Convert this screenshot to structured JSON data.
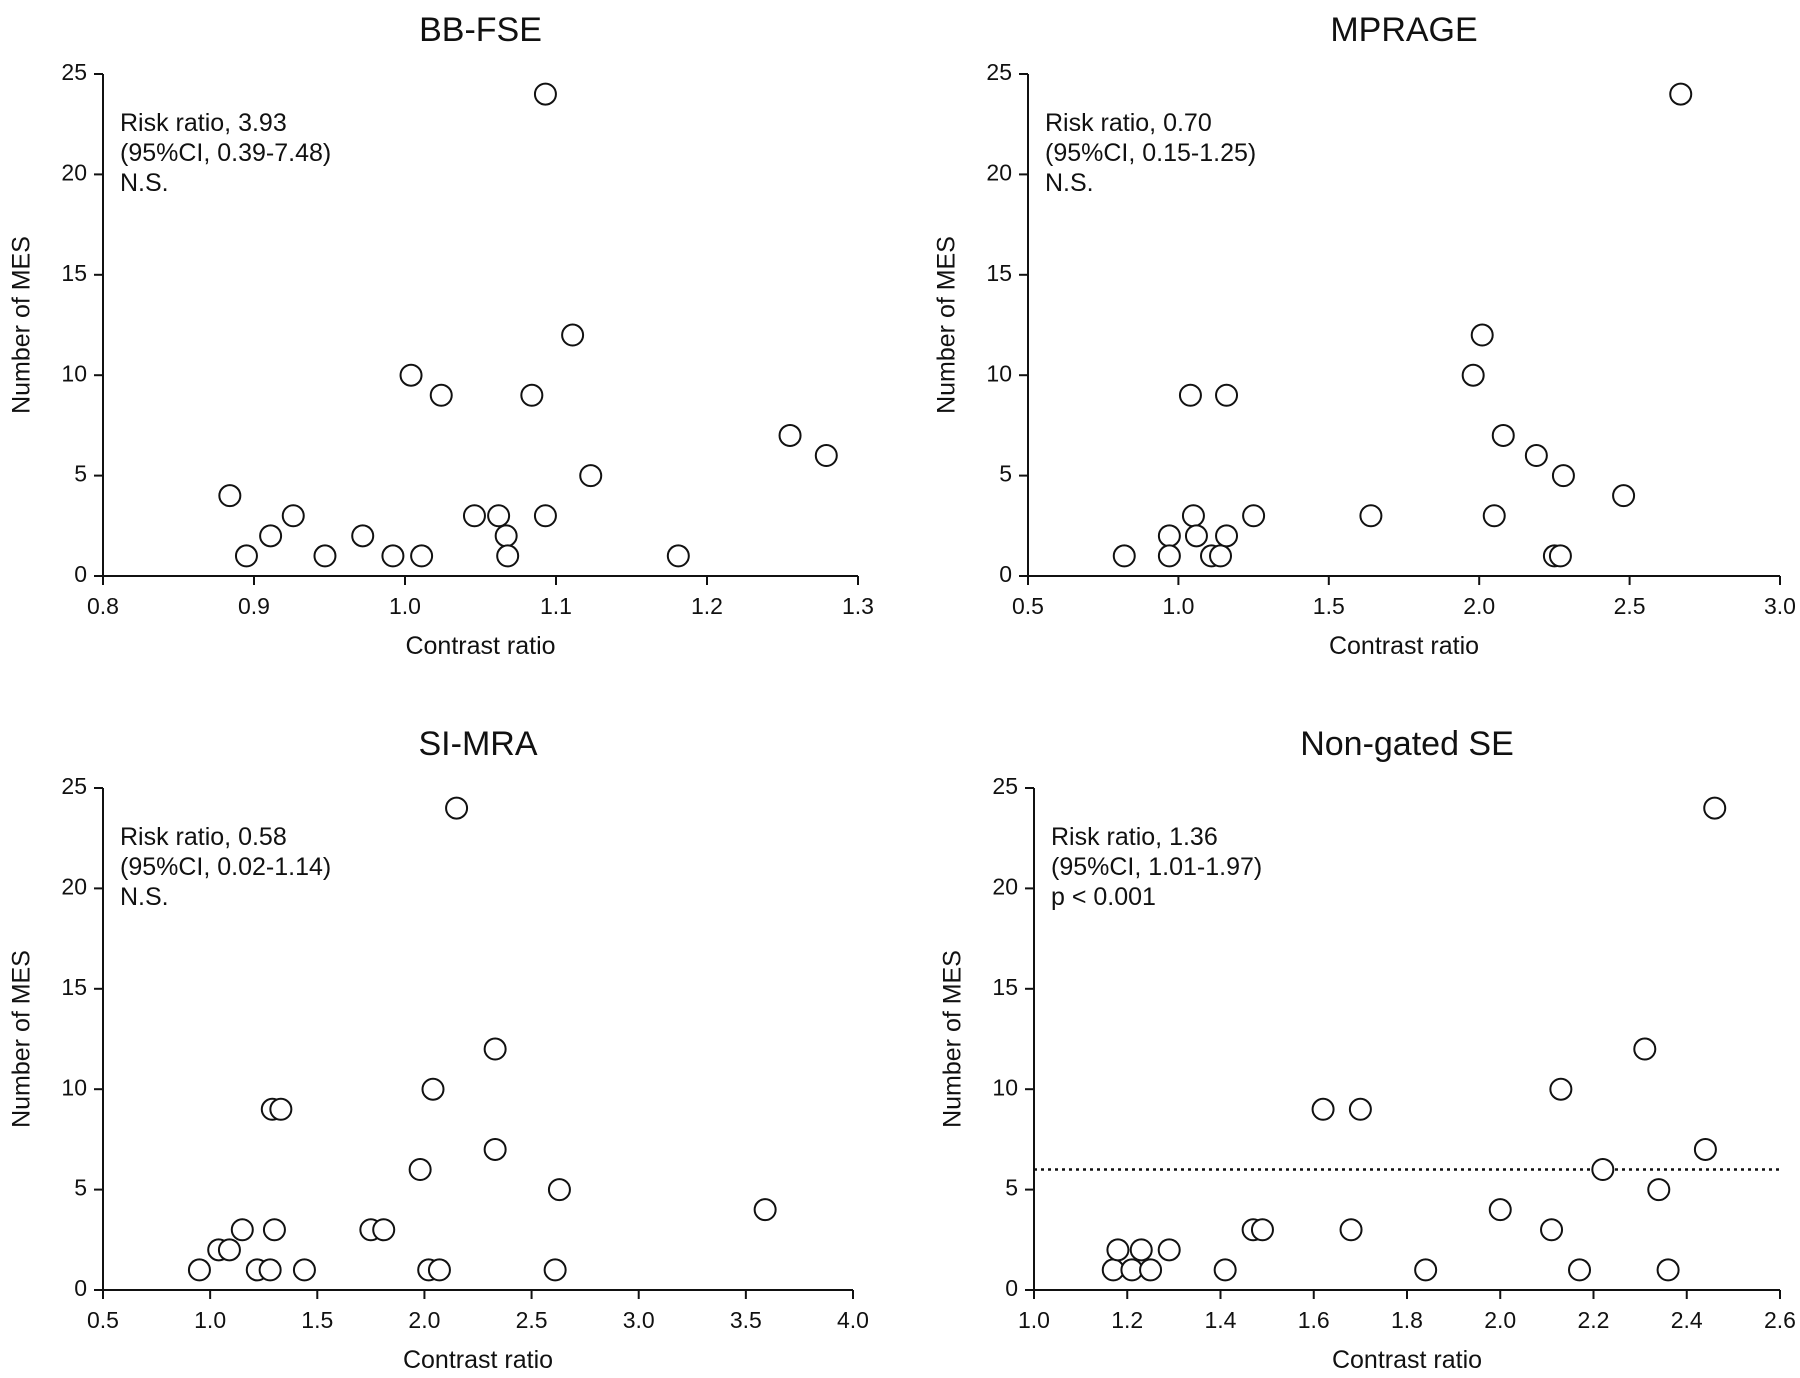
{
  "chart_data": [
    {
      "type": "scatter",
      "title": "BB-FSE",
      "xlabel": "Contrast ratio",
      "ylabel": "Number of MES",
      "xlim": [
        0.8,
        1.3
      ],
      "ylim": [
        0,
        25
      ],
      "xticks": [
        "0.8",
        "0.9",
        "1.0",
        "1.1",
        "1.2",
        "1.3"
      ],
      "yticks": [
        "0",
        "5",
        "10",
        "15",
        "20",
        "25"
      ],
      "annotations": [
        "Risk ratio, 3.93",
        "(95%CI, 0.39-7.48)",
        "N.S."
      ],
      "points": [
        {
          "x": 0.884,
          "y": 4
        },
        {
          "x": 0.895,
          "y": 1
        },
        {
          "x": 0.911,
          "y": 2
        },
        {
          "x": 0.926,
          "y": 3
        },
        {
          "x": 0.947,
          "y": 1
        },
        {
          "x": 0.972,
          "y": 2
        },
        {
          "x": 0.992,
          "y": 1
        },
        {
          "x": 1.004,
          "y": 10
        },
        {
          "x": 1.011,
          "y": 1
        },
        {
          "x": 1.024,
          "y": 9
        },
        {
          "x": 1.046,
          "y": 3
        },
        {
          "x": 1.062,
          "y": 3
        },
        {
          "x": 1.067,
          "y": 2
        },
        {
          "x": 1.068,
          "y": 1
        },
        {
          "x": 1.084,
          "y": 9
        },
        {
          "x": 1.093,
          "y": 3
        },
        {
          "x": 1.093,
          "y": 24
        },
        {
          "x": 1.111,
          "y": 12
        },
        {
          "x": 1.123,
          "y": 5
        },
        {
          "x": 1.181,
          "y": 1
        },
        {
          "x": 1.255,
          "y": 7
        },
        {
          "x": 1.279,
          "y": 6
        }
      ]
    },
    {
      "type": "scatter",
      "title": "MPRAGE",
      "xlabel": "Contrast ratio",
      "ylabel": "Number of MES",
      "xlim": [
        0.5,
        3.0
      ],
      "ylim": [
        0,
        25
      ],
      "xticks": [
        "0.5",
        "1.0",
        "1.5",
        "2.0",
        "2.5",
        "3.0"
      ],
      "yticks": [
        "0",
        "5",
        "10",
        "15",
        "20",
        "25"
      ],
      "annotations": [
        "Risk ratio, 0.70",
        "(95%CI, 0.15-1.25)",
        "N.S."
      ],
      "points": [
        {
          "x": 0.82,
          "y": 1
        },
        {
          "x": 0.97,
          "y": 2
        },
        {
          "x": 0.97,
          "y": 1
        },
        {
          "x": 1.04,
          "y": 9
        },
        {
          "x": 1.05,
          "y": 3
        },
        {
          "x": 1.06,
          "y": 2
        },
        {
          "x": 1.11,
          "y": 1
        },
        {
          "x": 1.14,
          "y": 1
        },
        {
          "x": 1.16,
          "y": 2
        },
        {
          "x": 1.16,
          "y": 9
        },
        {
          "x": 1.25,
          "y": 3
        },
        {
          "x": 1.64,
          "y": 3
        },
        {
          "x": 1.98,
          "y": 10
        },
        {
          "x": 2.01,
          "y": 12
        },
        {
          "x": 2.05,
          "y": 3
        },
        {
          "x": 2.08,
          "y": 7
        },
        {
          "x": 2.19,
          "y": 6
        },
        {
          "x": 2.25,
          "y": 1
        },
        {
          "x": 2.27,
          "y": 1
        },
        {
          "x": 2.28,
          "y": 5
        },
        {
          "x": 2.48,
          "y": 4
        },
        {
          "x": 2.67,
          "y": 24
        }
      ]
    },
    {
      "type": "scatter",
      "title": "SI-MRA",
      "xlabel": "Contrast ratio",
      "ylabel": "Number of MES",
      "xlim": [
        0.5,
        4.0
      ],
      "ylim": [
        0,
        25
      ],
      "xticks": [
        "0.5",
        "1.0",
        "1.5",
        "2.0",
        "2.5",
        "3.0",
        "3.5",
        "4.0"
      ],
      "yticks": [
        "0",
        "5",
        "10",
        "15",
        "20",
        "25"
      ],
      "annotations": [
        "Risk ratio, 0.58",
        "(95%CI, 0.02-1.14)",
        "N.S."
      ],
      "points": [
        {
          "x": 0.95,
          "y": 1
        },
        {
          "x": 1.04,
          "y": 2
        },
        {
          "x": 1.09,
          "y": 2
        },
        {
          "x": 1.15,
          "y": 3
        },
        {
          "x": 1.22,
          "y": 1
        },
        {
          "x": 1.28,
          "y": 1
        },
        {
          "x": 1.29,
          "y": 9
        },
        {
          "x": 1.3,
          "y": 3
        },
        {
          "x": 1.33,
          "y": 9
        },
        {
          "x": 1.44,
          "y": 1
        },
        {
          "x": 1.75,
          "y": 3
        },
        {
          "x": 1.81,
          "y": 3
        },
        {
          "x": 1.98,
          "y": 6
        },
        {
          "x": 2.02,
          "y": 1
        },
        {
          "x": 2.04,
          "y": 10
        },
        {
          "x": 2.07,
          "y": 1
        },
        {
          "x": 2.15,
          "y": 24
        },
        {
          "x": 2.33,
          "y": 12
        },
        {
          "x": 2.33,
          "y": 7
        },
        {
          "x": 2.61,
          "y": 1
        },
        {
          "x": 2.63,
          "y": 5
        },
        {
          "x": 3.59,
          "y": 4
        }
      ]
    },
    {
      "type": "scatter",
      "title": "Non-gated SE",
      "xlabel": "Contrast ratio",
      "ylabel": "Number of MES",
      "xlim": [
        1.0,
        2.6
      ],
      "ylim": [
        0,
        25
      ],
      "xticks": [
        "1.0",
        "1.2",
        "1.4",
        "1.6",
        "1.8",
        "2.0",
        "2.2",
        "2.4",
        "2.6"
      ],
      "yticks": [
        "0",
        "5",
        "10",
        "15",
        "20",
        "25"
      ],
      "annotations": [
        "Risk ratio, 1.36",
        "(95%CI, 1.01-1.97)",
        "p < 0.001"
      ],
      "reference_line_y": 6,
      "points": [
        {
          "x": 1.17,
          "y": 1
        },
        {
          "x": 1.18,
          "y": 2
        },
        {
          "x": 1.21,
          "y": 1
        },
        {
          "x": 1.23,
          "y": 2
        },
        {
          "x": 1.25,
          "y": 1
        },
        {
          "x": 1.29,
          "y": 2
        },
        {
          "x": 1.41,
          "y": 1
        },
        {
          "x": 1.47,
          "y": 3
        },
        {
          "x": 1.49,
          "y": 3
        },
        {
          "x": 1.62,
          "y": 9
        },
        {
          "x": 1.68,
          "y": 3
        },
        {
          "x": 1.7,
          "y": 9
        },
        {
          "x": 1.84,
          "y": 1
        },
        {
          "x": 2.0,
          "y": 4
        },
        {
          "x": 2.11,
          "y": 3
        },
        {
          "x": 2.13,
          "y": 10
        },
        {
          "x": 2.17,
          "y": 1
        },
        {
          "x": 2.22,
          "y": 6
        },
        {
          "x": 2.31,
          "y": 12
        },
        {
          "x": 2.34,
          "y": 5
        },
        {
          "x": 2.36,
          "y": 1
        },
        {
          "x": 2.44,
          "y": 7
        },
        {
          "x": 2.46,
          "y": 24
        }
      ]
    }
  ]
}
